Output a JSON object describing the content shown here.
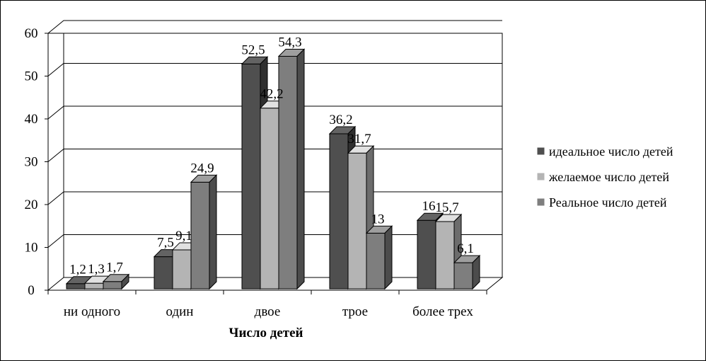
{
  "chart_data": {
    "type": "bar",
    "title": "",
    "xlabel": "Число детей",
    "ylabel": "",
    "categories": [
      "ни одного",
      "один",
      "двое",
      "трое",
      "более трех"
    ],
    "series": [
      {
        "name": "идеальное число детей",
        "values": [
          1.2,
          7.5,
          52.5,
          36.2,
          16
        ],
        "labels": [
          "1,2",
          "7,5",
          "52,5",
          "36,2",
          "16"
        ],
        "color": "#4f4f4f"
      },
      {
        "name": "желаемое число детей",
        "values": [
          1.3,
          9.1,
          42.2,
          31.7,
          15.7
        ],
        "labels": [
          "1,3",
          "9,1",
          "42,2",
          "31,7",
          "15,7"
        ],
        "color": "#b4b4b4"
      },
      {
        "name": "Реальное число детей",
        "values": [
          1.7,
          24.9,
          54.3,
          13,
          6.1
        ],
        "labels": [
          "1,7",
          "24,9",
          "54,3",
          "13",
          "6,1"
        ],
        "color": "#7e7e7e"
      }
    ],
    "ylim": [
      0,
      60
    ],
    "yticks": [
      "0",
      "10",
      "20",
      "30",
      "40",
      "50",
      "60"
    ],
    "grid": true,
    "legend": "right",
    "style": "3d-clustered-column"
  }
}
